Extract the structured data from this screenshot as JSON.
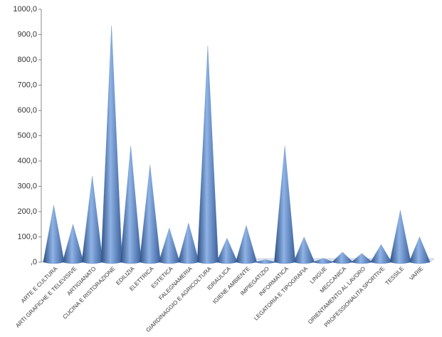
{
  "chart_data": {
    "type": "cone",
    "categories": [
      "ARTE E CULTURA",
      "ARTI GRAFICHE E TELEVISIVE",
      "ARTIGIANATO",
      "CUCINA E RISTORAZIONE",
      "EDILIZIA",
      "ELETTRICA",
      "ESTETICA",
      "FALEGNAMERIA",
      "GIARDINAGGIO E AGRICOLTURA",
      "IDRAULICA",
      "IGIENE AMBIENTE",
      "IMPIEGATIZIO",
      "INFORMATICA",
      "LEGATORIA E TIPOGRAFIA",
      "LINGUE",
      "MECCANICA",
      "ORIENTAMENTO AL LAVORO",
      "PROFESSIONALITA SPORTIVE",
      "TESSILE",
      "VARIE"
    ],
    "values": [
      225,
      150,
      340,
      935,
      460,
      385,
      135,
      155,
      855,
      95,
      145,
      10,
      460,
      100,
      15,
      40,
      35,
      70,
      205,
      100
    ],
    "color": "#4f81bd",
    "ylim": [
      0,
      1000
    ],
    "yticks": [
      {
        "value": 0,
        "label": ",0"
      },
      {
        "value": 100,
        "label": "100,0"
      },
      {
        "value": 200,
        "label": "200,0"
      },
      {
        "value": 300,
        "label": "300,0"
      },
      {
        "value": 400,
        "label": "400,0"
      },
      {
        "value": 500,
        "label": "500,0"
      },
      {
        "value": 600,
        "label": "600,0"
      },
      {
        "value": 700,
        "label": "700,0"
      },
      {
        "value": 800,
        "label": "800,0"
      },
      {
        "value": 900,
        "label": "900,0"
      },
      {
        "value": 1000,
        "label": "1000,0"
      }
    ],
    "grid": false
  }
}
